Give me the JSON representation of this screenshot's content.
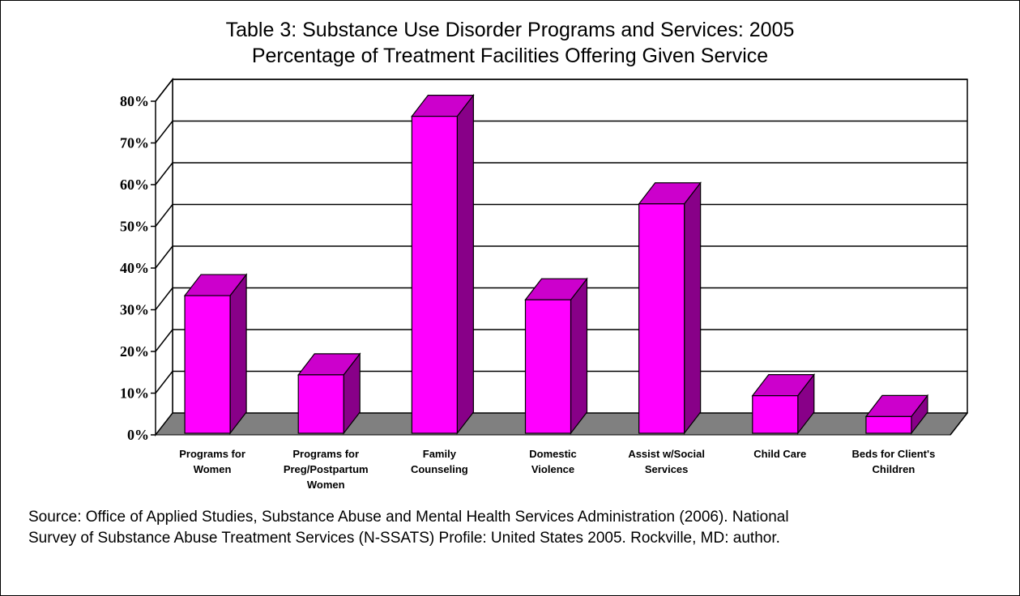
{
  "title_lines": [
    "Table 3: Substance Use Disorder Programs and Services: 2005",
    "Percentage of Treatment Facilities Offering Given Service"
  ],
  "source_lines": [
    "Source:  Office of Applied Studies, Substance Abuse and Mental Health Services Administration (2006). National",
    "Survey of Substance Abuse Treatment Services (N-SSATS) Profile: United States 2005. Rockville, MD: author."
  ],
  "colors": {
    "bar_front": "#ff00ff",
    "bar_top": "#cc00cc",
    "bar_side": "#880088",
    "floor": "#808080",
    "grid": "#000000"
  },
  "chart_data": {
    "type": "bar",
    "title": "Table 3: Substance Use Disorder Programs and Services: 2005 Percentage of Treatment Facilities Offering Given Service",
    "xlabel": "",
    "ylabel": "",
    "ylim": [
      0,
      80
    ],
    "yticks": [
      "0%",
      "10%",
      "20%",
      "30%",
      "40%",
      "50%",
      "60%",
      "70%",
      "80%"
    ],
    "grid": true,
    "legend": "none",
    "categories": [
      [
        "Programs for",
        "Women"
      ],
      [
        "Programs for",
        "Preg/Postpartum",
        "Women"
      ],
      [
        "Family",
        "Counseling"
      ],
      [
        "Domestic",
        "Violence"
      ],
      [
        "Assist w/Social",
        "Services"
      ],
      [
        "Child Care"
      ],
      [
        "Beds for Client's",
        "Children"
      ]
    ],
    "values": [
      33,
      14,
      76,
      32,
      55,
      9,
      4
    ]
  }
}
